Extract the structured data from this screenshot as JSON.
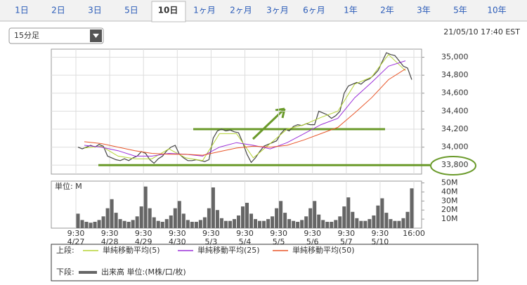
{
  "tabs": [
    {
      "label": "1日",
      "selected": false
    },
    {
      "label": "2日",
      "selected": false
    },
    {
      "label": "3日",
      "selected": false
    },
    {
      "label": "5日",
      "selected": false
    },
    {
      "label": "10日",
      "selected": true
    },
    {
      "label": "1ヶ月",
      "selected": false
    },
    {
      "label": "2ヶ月",
      "selected": false
    },
    {
      "label": "3ヶ月",
      "selected": false
    },
    {
      "label": "6ヶ月",
      "selected": false
    },
    {
      "label": "1年",
      "selected": false
    },
    {
      "label": "2年",
      "selected": false
    },
    {
      "label": "3年",
      "selected": false
    },
    {
      "label": "5年",
      "selected": false
    },
    {
      "label": "10年",
      "selected": false
    }
  ],
  "interval_select": "15分足",
  "timestamp": "21/05/10 17:40 EST",
  "time_axis": {
    "times": [
      "9:30",
      "9:30",
      "9:30",
      "9:30",
      "9:30",
      "9:30",
      "9:30",
      "9:30",
      "9:30",
      "9:30",
      "16:00"
    ],
    "dates": [
      "4/27",
      "4/28",
      "4/29",
      "4/30",
      "5/3",
      "5/4",
      "5/5",
      "5/6",
      "5/7",
      "5/10"
    ]
  },
  "legend": {
    "upper_label": "上段:",
    "lower_label": "下段:"
  },
  "chart_data": [
    {
      "type": "line",
      "ylim": [
        33700,
        35090
      ],
      "grid": true,
      "yticks": [
        {
          "value": 33800,
          "label": "33,800"
        },
        {
          "value": 34000,
          "label": "34,000"
        },
        {
          "value": 34200,
          "label": "34,200"
        },
        {
          "value": 34400,
          "label": "34,400"
        },
        {
          "value": 34600,
          "label": "34,600"
        },
        {
          "value": 34800,
          "label": "34,800"
        },
        {
          "value": 35000,
          "label": "35,000"
        }
      ],
      "hlines": [
        {
          "value": 34200
        },
        {
          "value": 33800
        }
      ],
      "hline_color": "#6a9a2a",
      "series": [
        {
          "color": "#444444",
          "values": [
            34000,
            33980,
            34000,
            34020,
            34000,
            34030,
            34010,
            33900,
            33880,
            33860,
            33850,
            33870,
            33850,
            33880,
            33900,
            33950,
            33930,
            33860,
            33820,
            33870,
            33900,
            33960,
            34000,
            34020,
            33920,
            33880,
            33850,
            33850,
            33860,
            33850,
            33840,
            33860,
            34100,
            34180,
            34200,
            34180,
            34190,
            34170,
            34160,
            34050,
            33920,
            33830,
            33880,
            33950,
            34010,
            34030,
            34050,
            34070,
            34150,
            34200,
            34180,
            34230,
            34250,
            34240,
            34260,
            34250,
            34250,
            34400,
            34380,
            34360,
            34320,
            34350,
            34400,
            34600,
            34680,
            34700,
            34720,
            34700,
            34740,
            34760,
            34800,
            34850,
            34950,
            35050,
            35030,
            35020,
            34960,
            34900,
            34880,
            34750
          ]
        },
        {
          "name": "単純移動平均(5)",
          "color": "#b5d334",
          "values": [
            33990,
            34010,
            33900,
            33870,
            33870,
            33980,
            33880,
            33850,
            34150,
            34150,
            33880,
            34040,
            34200,
            34250,
            34330,
            34400,
            34700,
            34780,
            35030,
            34850
          ]
        },
        {
          "name": "単純移動平均(25)",
          "color": "#9b30d9",
          "values": [
            34020,
            34000,
            33960,
            33900,
            33900,
            33930,
            33920,
            33900,
            34000,
            34050,
            34020,
            33980,
            34050,
            34150,
            34250,
            34320,
            34550,
            34720,
            34900,
            34960
          ]
        },
        {
          "name": "単純移動平均(50)",
          "color": "#e8562a",
          "values": [
            34060,
            34040,
            34000,
            33960,
            33930,
            33920,
            33920,
            33910,
            33950,
            33990,
            34010,
            34000,
            34020,
            34080,
            34150,
            34220,
            34380,
            34550,
            34750,
            34870
          ]
        }
      ]
    },
    {
      "type": "bar",
      "unit_label": "単位: M",
      "ylim": [
        0,
        52
      ],
      "yticks": [
        {
          "value": 10,
          "label": "10M"
        },
        {
          "value": 20,
          "label": "20M"
        },
        {
          "value": 30,
          "label": "30M"
        },
        {
          "value": 40,
          "label": "40M"
        },
        {
          "value": 50,
          "label": "50M"
        }
      ],
      "series": [
        {
          "name": "出来高 単位:(M株/口/枚)",
          "color": "#666666",
          "values": [
            16,
            9,
            7,
            6,
            7,
            9,
            13,
            22,
            32,
            17,
            10,
            8,
            7,
            9,
            13,
            24,
            46,
            22,
            12,
            8,
            7,
            10,
            14,
            22,
            30,
            16,
            9,
            7,
            7,
            9,
            12,
            22,
            45,
            20,
            11,
            8,
            8,
            10,
            14,
            24,
            28,
            16,
            10,
            8,
            8,
            10,
            13,
            22,
            30,
            17,
            10,
            8,
            7,
            9,
            13,
            22,
            30,
            15,
            9,
            7,
            7,
            9,
            13,
            24,
            34,
            18,
            11,
            8,
            8,
            10,
            14,
            25,
            33,
            17,
            10,
            8,
            8,
            11,
            18,
            44
          ]
        }
      ]
    }
  ]
}
